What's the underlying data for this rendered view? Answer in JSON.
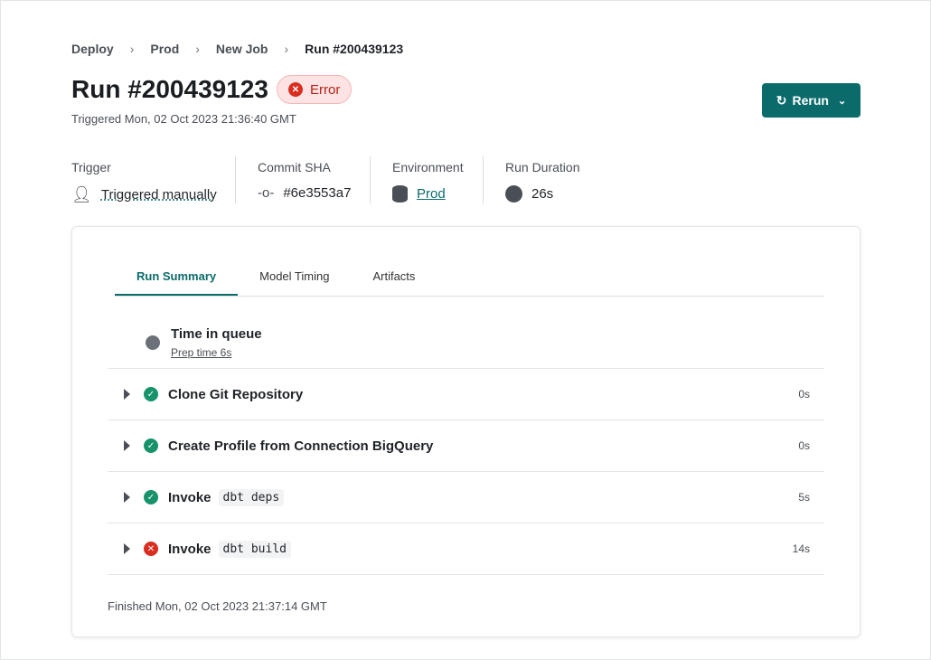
{
  "breadcrumb": [
    "Deploy",
    "Prod",
    "New Job",
    "Run #200439123"
  ],
  "title": "Run #200439123",
  "status": {
    "label": "Error",
    "color": "#d92d20"
  },
  "triggered": "Triggered Mon, 02 Oct 2023 21:36:40 GMT",
  "rerun_label": "Rerun",
  "meta": {
    "trigger": {
      "label": "Trigger",
      "value": "Triggered manually",
      "icon": "user-icon"
    },
    "commit": {
      "label": "Commit SHA",
      "value": "#6e3553a7",
      "icon": "commit-icon"
    },
    "environment": {
      "label": "Environment",
      "value": "Prod",
      "icon": "database-icon"
    },
    "duration": {
      "label": "Run Duration",
      "value": "26s",
      "icon": "clock-icon"
    }
  },
  "tabs": [
    "Run Summary",
    "Model Timing",
    "Artifacts"
  ],
  "queue": {
    "title": "Time in queue",
    "prep": "Prep time 6s"
  },
  "steps": [
    {
      "name": "Clone Git Repository",
      "code": "",
      "duration": "0s",
      "status": "success"
    },
    {
      "name": "Create Profile from Connection BigQuery",
      "code": "",
      "duration": "0s",
      "status": "success"
    },
    {
      "name": "Invoke",
      "code": "dbt deps",
      "duration": "5s",
      "status": "success"
    },
    {
      "name": "Invoke",
      "code": "dbt build",
      "duration": "14s",
      "status": "error"
    }
  ],
  "finished": "Finished Mon, 02 Oct 2023 21:37:14 GMT",
  "accent": "#0b6b6b"
}
